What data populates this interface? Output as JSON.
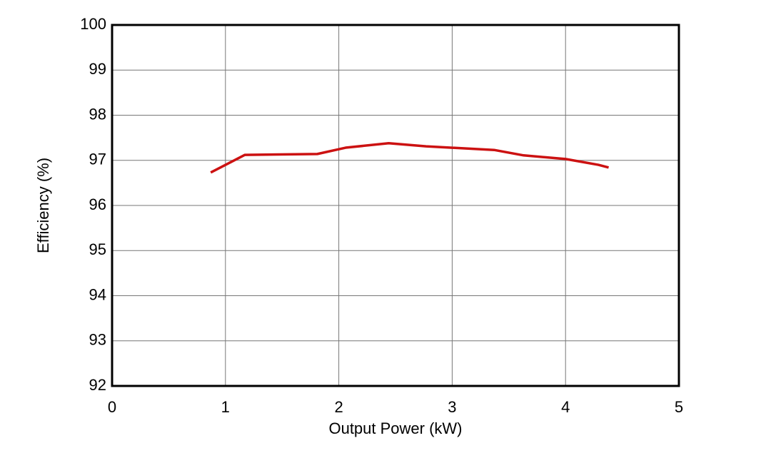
{
  "chart_data": {
    "type": "line",
    "x_label": "Output Power (kW)",
    "y_label": "Efficiency (%)",
    "xlim": [
      0,
      5
    ],
    "xticks": [
      0,
      1,
      2,
      3,
      4,
      5
    ],
    "ylim": [
      92,
      100
    ],
    "yticks": [
      92,
      93,
      94,
      95,
      96,
      97,
      98,
      99,
      100
    ],
    "grid": true,
    "series": [
      {
        "color": "#cc1111",
        "x": [
          0.87,
          1.17,
          1.81,
          2.06,
          2.44,
          2.77,
          3.37,
          3.63,
          4.0,
          4.29,
          4.38
        ],
        "values": [
          96.73,
          97.12,
          97.14,
          97.28,
          97.38,
          97.31,
          97.23,
          97.11,
          97.03,
          96.9,
          96.84
        ]
      }
    ]
  }
}
